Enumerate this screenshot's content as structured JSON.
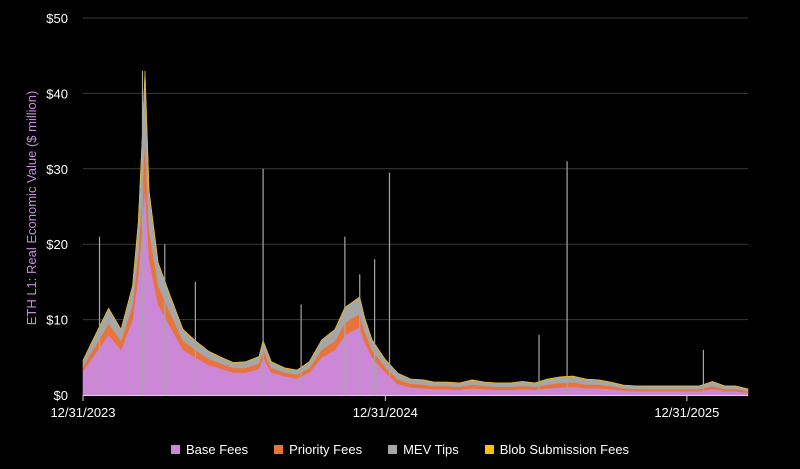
{
  "chart_data": {
    "type": "area",
    "stacked": true,
    "title": "",
    "xlabel": "",
    "ylabel": "ETH L1: Real Economic Value ($ million)",
    "ylim": [
      0,
      50
    ],
    "yticks": [
      "$0",
      "$10",
      "$20",
      "$30",
      "$40",
      "$50"
    ],
    "ytick_values": [
      0,
      10,
      20,
      30,
      40,
      50
    ],
    "xticks": [
      "12/31/2023",
      "12/31/2024",
      "12/31/2025"
    ],
    "grid": "horizontal",
    "legend_position": "bottom",
    "x_dates": [
      "2023-12-31",
      "2024-01-15",
      "2024-01-31",
      "2024-02-15",
      "2024-02-29",
      "2024-03-07",
      "2024-03-12",
      "2024-03-15",
      "2024-03-20",
      "2024-03-31",
      "2024-04-15",
      "2024-04-30",
      "2024-05-15",
      "2024-05-31",
      "2024-06-15",
      "2024-06-30",
      "2024-07-15",
      "2024-07-31",
      "2024-08-05",
      "2024-08-15",
      "2024-08-31",
      "2024-09-15",
      "2024-09-30",
      "2024-10-15",
      "2024-10-31",
      "2024-11-12",
      "2024-11-30",
      "2024-12-06",
      "2024-12-15",
      "2024-12-31",
      "2025-01-15",
      "2025-01-31",
      "2025-02-15",
      "2025-02-28",
      "2025-03-15",
      "2025-03-31",
      "2025-04-15",
      "2025-04-30",
      "2025-05-15",
      "2025-05-31",
      "2025-06-15",
      "2025-06-30",
      "2025-07-15",
      "2025-07-31",
      "2025-08-15",
      "2025-08-31",
      "2025-09-15",
      "2025-09-30",
      "2025-10-15",
      "2025-10-31",
      "2025-11-15",
      "2025-11-30",
      "2025-12-15",
      "2025-12-31",
      "2026-01-15",
      "2026-01-31",
      "2026-02-15",
      "2026-02-28",
      "2026-03-15"
    ],
    "series": [
      {
        "name": "Base Fees",
        "color": "#cc88d6",
        "values": [
          3.2,
          5.5,
          8,
          6,
          10,
          16,
          23,
          28,
          18,
          12,
          9,
          6,
          5,
          4,
          3.5,
          3,
          3,
          3.5,
          5,
          3,
          2.5,
          2.2,
          3,
          5,
          6,
          8,
          9,
          7,
          5,
          3,
          1.5,
          1,
          0.9,
          0.8,
          0.8,
          0.7,
          0.9,
          0.8,
          0.7,
          0.7,
          0.8,
          0.7,
          0.9,
          1,
          1.1,
          0.9,
          0.9,
          0.8,
          0.6,
          0.5,
          0.5,
          0.5,
          0.5,
          0.5,
          0.5,
          0.8,
          0.5,
          0.5,
          0.3
        ]
      },
      {
        "name": "Priority Fees",
        "color": "#e8743b",
        "values": [
          0.6,
          1,
          1.5,
          1.2,
          2,
          3,
          5,
          6,
          4,
          2.5,
          1.8,
          1.2,
          1,
          0.8,
          0.7,
          0.6,
          0.6,
          0.7,
          1,
          0.6,
          0.5,
          0.5,
          0.6,
          1,
          1.2,
          1.6,
          1.8,
          1.4,
          1,
          0.7,
          0.6,
          0.5,
          0.5,
          0.4,
          0.4,
          0.4,
          0.5,
          0.4,
          0.4,
          0.4,
          0.4,
          0.4,
          0.5,
          0.6,
          0.6,
          0.5,
          0.5,
          0.4,
          0.3,
          0.3,
          0.3,
          0.3,
          0.3,
          0.3,
          0.3,
          0.4,
          0.3,
          0.3,
          0.2
        ]
      },
      {
        "name": "MEV Tips",
        "color": "#a6a6a6",
        "values": [
          0.8,
          1.5,
          2,
          1.5,
          2.5,
          4,
          7,
          9,
          5,
          3,
          2.2,
          1.5,
          1.2,
          1,
          0.8,
          0.7,
          0.8,
          0.9,
          1.2,
          0.8,
          0.6,
          0.6,
          0.8,
          1.3,
          1.5,
          2,
          2.2,
          1.8,
          1.3,
          1,
          0.8,
          0.6,
          0.6,
          0.5,
          0.5,
          0.5,
          0.6,
          0.5,
          0.5,
          0.5,
          0.6,
          0.5,
          0.7,
          0.8,
          0.8,
          0.7,
          0.6,
          0.5,
          0.4,
          0.4,
          0.4,
          0.4,
          0.4,
          0.4,
          0.4,
          0.6,
          0.4,
          0.4,
          0.3
        ]
      },
      {
        "name": "Blob Submission Fees",
        "color": "#ffc000",
        "values": [
          0,
          0,
          0,
          0,
          0,
          0,
          0,
          0,
          0.1,
          0.05,
          0.03,
          0.02,
          0.02,
          0.02,
          0.01,
          0.01,
          0.01,
          0.01,
          0.01,
          0.01,
          0.01,
          0.01,
          0.01,
          0.01,
          0.01,
          0.01,
          0.01,
          0.01,
          0.01,
          0.01,
          0.01,
          0.01,
          0.01,
          0.01,
          0.01,
          0.01,
          0.01,
          0.01,
          0.01,
          0.01,
          0.01,
          0.01,
          0.01,
          0.01,
          0.01,
          0.01,
          0.01,
          0.01,
          0.01,
          0.01,
          0.01,
          0.01,
          0.01,
          0.01,
          0.01,
          0.01,
          0.01,
          0.01,
          0.01
        ]
      }
    ],
    "spikes": [
      {
        "date": "2024-03-12",
        "total": 43
      },
      {
        "date": "2024-01-20",
        "total": 21
      },
      {
        "date": "2024-04-08",
        "total": 20
      },
      {
        "date": "2024-05-15",
        "total": 15
      },
      {
        "date": "2024-08-05",
        "total": 30
      },
      {
        "date": "2024-09-20",
        "total": 12
      },
      {
        "date": "2024-11-12",
        "total": 21
      },
      {
        "date": "2024-11-30",
        "total": 16
      },
      {
        "date": "2024-12-18",
        "total": 18
      },
      {
        "date": "2025-01-05",
        "total": 29.5
      },
      {
        "date": "2025-08-08",
        "total": 31
      },
      {
        "date": "2025-07-05",
        "total": 8
      },
      {
        "date": "2026-01-20",
        "total": 6
      }
    ]
  }
}
